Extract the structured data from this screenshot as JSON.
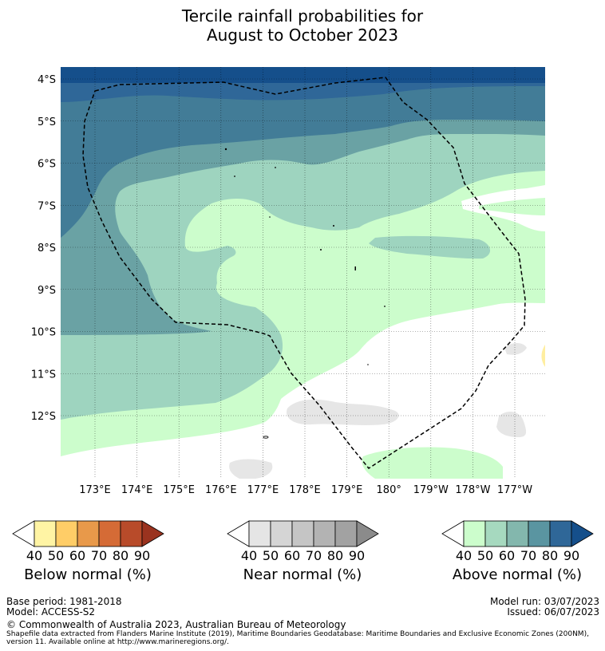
{
  "title": {
    "line1": "Tercile rainfall probabilities for",
    "line2": "August to October 2023"
  },
  "map": {
    "lat_labels": [
      "4°S",
      "5°S",
      "6°S",
      "7°S",
      "8°S",
      "9°S",
      "10°S",
      "11°S",
      "12°S"
    ],
    "lon_labels": [
      "173°E",
      "174°E",
      "175°E",
      "176°E",
      "177°E",
      "178°E",
      "179°E",
      "180°",
      "179°W",
      "178°W",
      "177°W"
    ],
    "colors": {
      "above_90": "#154f8b",
      "above_80": "#2f6798",
      "above_70": "#427c97",
      "above_60": "#6aa2a4",
      "above_50": "#9ed4bf",
      "above_40": "#ccfdcc",
      "near_40": "#e6e6e6",
      "below_40": "#ffeea0",
      "boundary": "#000000"
    }
  },
  "legends": [
    {
      "name": "Below normal (%)",
      "colors": [
        "#fff4a4",
        "#ffcd67",
        "#e8994a",
        "#d56b36",
        "#b84b2a",
        "#9a331f"
      ],
      "ticks": [
        "40",
        "50",
        "60",
        "70",
        "80",
        "90"
      ]
    },
    {
      "name": "Near normal (%)",
      "colors": [
        "#e5e5e5",
        "#d5d5d5",
        "#c5c5c5",
        "#b3b3b3",
        "#a2a2a2",
        "#8b8b8b"
      ],
      "ticks": [
        "40",
        "50",
        "60",
        "70",
        "80",
        "90"
      ]
    },
    {
      "name": "Above normal (%)",
      "colors": [
        "#ccfdcc",
        "#a6d9bf",
        "#83b7ad",
        "#5a95a1",
        "#2f6798",
        "#154f8b"
      ],
      "ticks": [
        "40",
        "50",
        "60",
        "70",
        "80",
        "90"
      ]
    }
  ],
  "footer": {
    "base_period": "Base period: 1981-2018",
    "model": "Model: ACCESS-S2",
    "model_run": "Model run: 03/07/2023",
    "issued": "Issued: 06/07/2023",
    "copyright": "© Commonwealth of Australia 2023, Australian Bureau of Meteorology",
    "shapefile_line1": "Shapefile data extracted from Flanders Marine Institute (2019), Maritime Boundaries Geodatabase: Maritime Boundaries and Exclusive Economic Zones (200NM),",
    "shapefile_line2": "version 11. Available online at http://www.marineregions.org/."
  }
}
